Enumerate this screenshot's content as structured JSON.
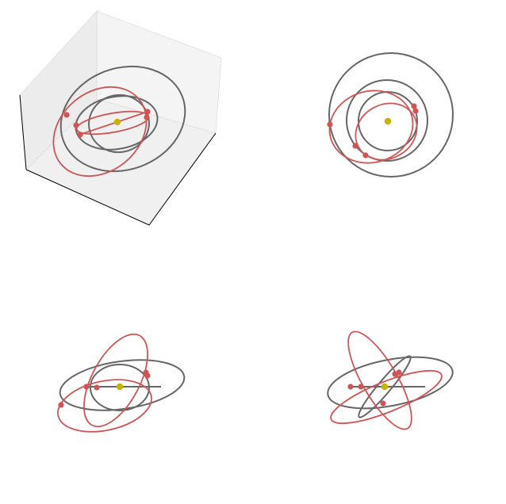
{
  "colors": {
    "planet_orbit": "#666666",
    "small_body": "#cd5555",
    "sun": "#c8b400",
    "pane_left": "#ececec",
    "pane_right": "#f4f4f4",
    "pane_floor": "#f0f0f0"
  },
  "panels": [
    {
      "name": "perspective-3d",
      "axes_3d": true
    },
    {
      "name": "top-view"
    },
    {
      "name": "front-view"
    },
    {
      "name": "side-view"
    }
  ]
}
